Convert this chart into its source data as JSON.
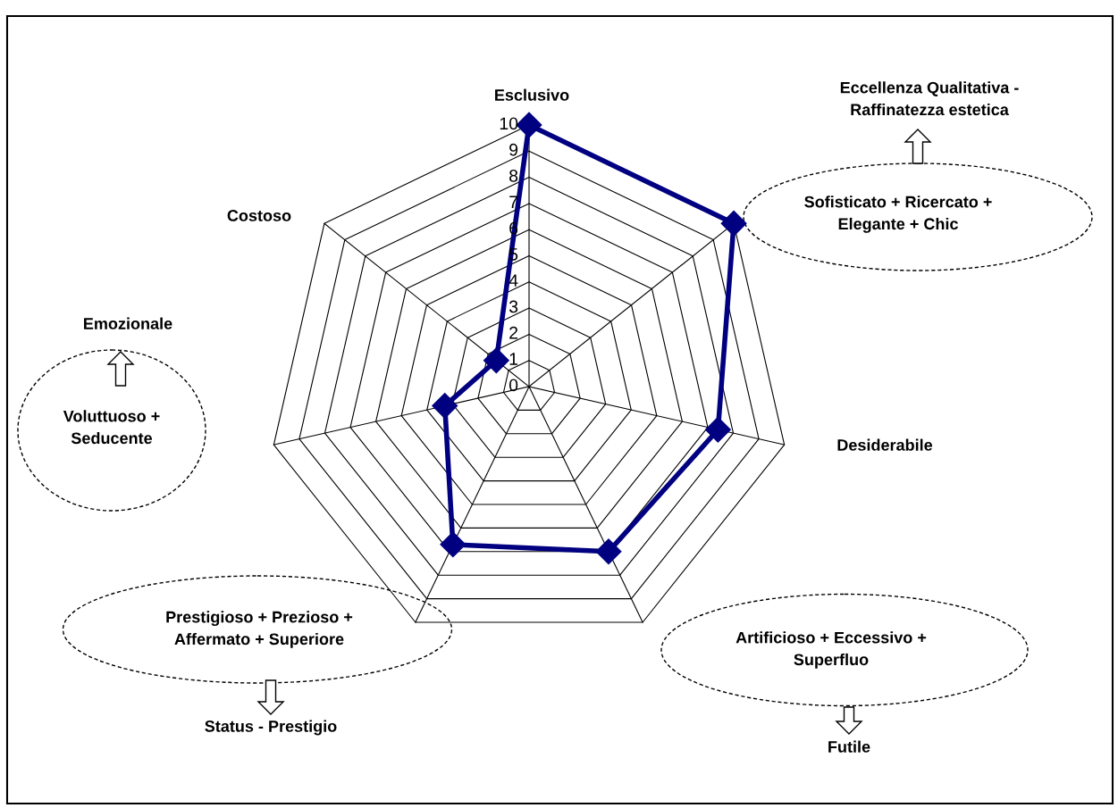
{
  "chart_data": {
    "type": "radar",
    "categories": [
      "Esclusivo",
      "Sofisticato + Ricercato +\nElegante + Chic",
      "Desiderabile",
      "Artificioso + Eccessivo +\nSuperfluo",
      "Prestigioso + Prezioso +\nAffermato + Superiore",
      "Voluttuoso +\nSeducente",
      "Costoso"
    ],
    "series": [
      {
        "color": "#000080",
        "values": [
          10,
          10,
          7.4,
          7,
          6.7,
          3.3,
          1.6
        ]
      }
    ],
    "ylim": [
      0,
      10
    ],
    "yticks": [
      0,
      1,
      2,
      3,
      4,
      5,
      6,
      7,
      8,
      9,
      10
    ],
    "grid": true,
    "marker": "diamond",
    "line_style": "solid",
    "annotations": [
      "Eccellenza Qualitativa -\nRaffinatezza estetica",
      "Futile",
      "Status - Prestigio",
      "Emozionale"
    ]
  }
}
